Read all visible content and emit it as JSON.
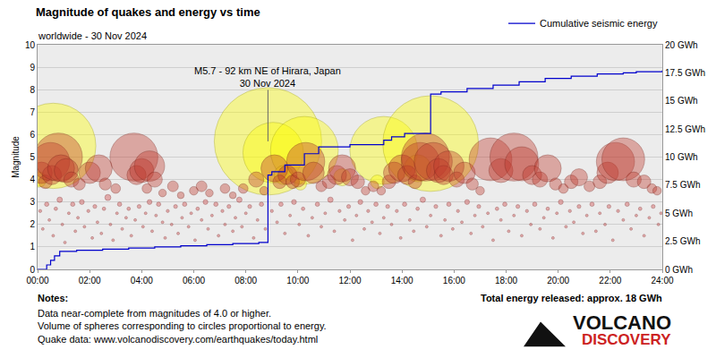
{
  "chart_data": {
    "type": "scatter",
    "title": "Magnitude of quakes and energy vs time",
    "subtitle": "worldwide - 30 Nov 2024",
    "y_label": "Magnitude",
    "xlim": [
      0,
      24
    ],
    "xticks": [
      {
        "value": 0,
        "label": "00:00"
      },
      {
        "value": 2,
        "label": "02:00"
      },
      {
        "value": 4,
        "label": "04:00"
      },
      {
        "value": 6,
        "label": "06:00"
      },
      {
        "value": 8,
        "label": "08:00"
      },
      {
        "value": 10,
        "label": "10:00"
      },
      {
        "value": 12,
        "label": "12:00"
      },
      {
        "value": 14,
        "label": "14:00"
      },
      {
        "value": 16,
        "label": "16:00"
      },
      {
        "value": 18,
        "label": "18:00"
      },
      {
        "value": 20,
        "label": "20:00"
      },
      {
        "value": 22,
        "label": "22:00"
      },
      {
        "value": 24,
        "label": "24:00"
      }
    ],
    "ylim": [
      0,
      10
    ],
    "yticks": [
      0,
      1,
      2,
      3,
      4,
      5,
      6,
      7,
      8,
      9,
      10
    ],
    "y2lim": [
      0,
      20
    ],
    "y2ticks": [
      {
        "value": 0,
        "label": "0 GWh"
      },
      {
        "value": 2.5,
        "label": "2.5 GWh"
      },
      {
        "value": 5,
        "label": "5 GWh"
      },
      {
        "value": 7.5,
        "label": "7.5 GWh"
      },
      {
        "value": 10,
        "label": "10 GWh"
      },
      {
        "value": 12.5,
        "label": "12.5 GWh"
      },
      {
        "value": 15,
        "label": "15 GWh"
      },
      {
        "value": 17.5,
        "label": "17.5 GWh"
      },
      {
        "value": 20,
        "label": "20 GWh"
      }
    ],
    "grid": "y",
    "legend": "top right",
    "series": [
      {
        "color": "#ffff00",
        "marker": "circle",
        "x": [
          0.6,
          8.85,
          9.05,
          10.25,
          13.3,
          15.1,
          9.45,
          10.1,
          11.7,
          13.05,
          14.6,
          0.05
        ],
        "values": [
          5.5,
          5.7,
          5.2,
          5.3,
          5.3,
          5.6,
          4.2,
          3.8,
          4.1,
          3.9,
          4.5,
          4.0
        ]
      },
      {
        "color": "#c0392b",
        "marker": "circle",
        "x": [
          0.15,
          0.3,
          0.5,
          0.55,
          0.8,
          0.9,
          1.1,
          1.3,
          1.6,
          2.0,
          2.35,
          2.6,
          3.0,
          3.7,
          3.8,
          4.0,
          4.2,
          4.3,
          4.5,
          4.8,
          5.2,
          5.5,
          6.0,
          6.3,
          6.6,
          7.2,
          7.5,
          7.9,
          8.4,
          8.7,
          9.1,
          9.3,
          9.6,
          9.8,
          10.0,
          10.3,
          10.6,
          10.9,
          11.2,
          11.5,
          11.7,
          12.0,
          12.3,
          12.6,
          12.9,
          13.2,
          13.5,
          13.7,
          14.0,
          14.2,
          14.5,
          14.7,
          14.9,
          15.2,
          15.4,
          15.6,
          15.8,
          16.1,
          16.4,
          16.7,
          17.0,
          17.4,
          17.8,
          18.3,
          18.6,
          19.0,
          19.3,
          19.6,
          19.9,
          20.2,
          20.5,
          20.8,
          21.2,
          21.6,
          21.9,
          22.2,
          22.5,
          22.9,
          23.3,
          23.6,
          23.8
        ],
        "values": [
          4.3,
          3.9,
          4.8,
          4.2,
          5.0,
          4.5,
          4.4,
          4.0,
          3.8,
          4.3,
          4.5,
          3.8,
          3.6,
          5.0,
          4.2,
          4.4,
          3.6,
          4.6,
          4.0,
          3.4,
          3.7,
          3.3,
          3.5,
          3.7,
          3.4,
          3.6,
          3.3,
          3.6,
          4.0,
          3.5,
          4.5,
          3.9,
          4.2,
          3.9,
          4.0,
          4.8,
          4.3,
          3.7,
          3.9,
          4.2,
          4.5,
          4.1,
          3.9,
          3.5,
          3.7,
          3.5,
          3.9,
          4.3,
          4.5,
          4.2,
          3.9,
          4.8,
          5.0,
          4.8,
          4.4,
          4.2,
          4.6,
          4.0,
          4.3,
          3.8,
          3.5,
          4.9,
          4.4,
          5.0,
          4.7,
          4.2,
          4.0,
          4.5,
          3.8,
          3.6,
          3.9,
          4.1,
          3.7,
          3.9,
          4.3,
          4.8,
          4.9,
          4.0,
          3.9,
          3.6,
          3.5
        ]
      },
      {
        "color": "#d04040",
        "marker": "circle",
        "x": [
          0.1,
          0.2,
          0.35,
          0.45,
          0.6,
          0.7,
          0.85,
          0.95,
          1.05,
          1.2,
          1.35,
          1.45,
          1.55,
          1.7,
          1.8,
          1.95,
          2.1,
          2.2,
          2.3,
          2.45,
          2.55,
          2.7,
          2.8,
          2.9,
          3.05,
          3.15,
          3.25,
          3.4,
          3.5,
          3.6,
          3.75,
          3.9,
          4.05,
          4.15,
          4.3,
          4.4,
          4.55,
          4.65,
          4.8,
          4.9,
          5.0,
          5.15,
          5.3,
          5.4,
          5.55,
          5.65,
          5.8,
          5.9,
          6.05,
          6.15,
          6.3,
          6.45,
          6.55,
          6.7,
          6.85,
          6.95,
          7.1,
          7.2,
          7.35,
          7.5,
          7.6,
          7.75,
          7.85,
          8.0,
          8.15,
          8.3,
          8.45,
          8.6,
          8.75,
          9.0,
          9.2,
          9.35,
          9.5,
          9.7,
          9.85,
          10.05,
          10.2,
          10.4,
          10.55,
          10.75,
          10.9,
          11.05,
          11.25,
          11.4,
          11.6,
          11.8,
          11.95,
          12.1,
          12.25,
          12.4,
          12.55,
          12.7,
          12.85,
          13.0,
          13.15,
          13.3,
          13.45,
          13.6,
          13.8,
          13.95,
          14.1,
          14.3,
          14.45,
          14.6,
          14.8,
          14.95,
          15.1,
          15.3,
          15.5,
          15.65,
          15.8,
          15.95,
          16.15,
          16.3,
          16.5,
          16.65,
          16.8,
          16.95,
          17.1,
          17.3,
          17.5,
          17.65,
          17.8,
          17.95,
          18.1,
          18.3,
          18.45,
          18.6,
          18.8,
          18.95,
          19.1,
          19.3,
          19.45,
          19.6,
          19.8,
          19.95,
          20.1,
          20.3,
          20.45,
          20.6,
          20.8,
          20.95,
          21.1,
          21.3,
          21.45,
          21.6,
          21.8,
          21.95,
          22.1,
          22.3,
          22.5,
          22.65,
          22.8,
          23.0,
          23.15,
          23.3,
          23.5,
          23.65,
          23.85,
          23.95
        ],
        "values": [
          2.6,
          1.8,
          2.9,
          2.2,
          1.5,
          2.7,
          3.1,
          2.0,
          1.2,
          2.5,
          2.9,
          1.7,
          2.3,
          3.0,
          1.9,
          2.6,
          1.4,
          2.8,
          2.1,
          1.6,
          2.7,
          3.2,
          2.0,
          1.3,
          2.5,
          2.9,
          1.8,
          2.3,
          2.7,
          1.5,
          2.2,
          2.8,
          1.9,
          2.5,
          3.0,
          1.7,
          2.4,
          2.9,
          2.1,
          1.4,
          2.6,
          2.0,
          2.8,
          1.6,
          2.3,
          2.9,
          1.9,
          2.5,
          1.3,
          2.7,
          2.2,
          3.0,
          1.8,
          2.4,
          2.9,
          1.5,
          2.6,
          2.0,
          2.8,
          1.7,
          2.3,
          3.1,
          1.9,
          2.5,
          2.8,
          1.4,
          2.2,
          2.9,
          1.8,
          2.6,
          2.1,
          2.9,
          1.6,
          2.4,
          3.0,
          2.0,
          2.7,
          1.5,
          2.3,
          2.9,
          1.9,
          2.5,
          3.1,
          1.7,
          2.6,
          2.2,
          2.8,
          1.3,
          2.4,
          3.0,
          1.8,
          2.6,
          2.1,
          2.9,
          1.6,
          2.3,
          2.8,
          2.0,
          2.6,
          1.4,
          2.9,
          2.2,
          1.7,
          2.7,
          3.1,
          1.9,
          2.4,
          2.8,
          1.5,
          2.2,
          2.9,
          1.8,
          2.6,
          2.1,
          3.0,
          1.6,
          2.4,
          2.8,
          1.9,
          2.5,
          1.3,
          2.7,
          2.2,
          2.9,
          1.7,
          2.4,
          2.8,
          1.5,
          2.6,
          2.0,
          2.9,
          1.8,
          2.3,
          2.7,
          1.4,
          2.5,
          3.0,
          1.9,
          2.6,
          2.1,
          2.8,
          1.6,
          2.4,
          2.9,
          1.7,
          2.5,
          2.0,
          2.8,
          1.3,
          2.6,
          2.2,
          2.9,
          1.8,
          2.4,
          2.7,
          1.5,
          2.3,
          2.8,
          2.0,
          2.5
        ]
      },
      {
        "name": "Cumulative seismic energy",
        "type": "line",
        "axis": "y2",
        "color": "#0000cc",
        "line_style": "step",
        "x": [
          0,
          0.35,
          0.5,
          0.65,
          0.85,
          1.5,
          2.5,
          3.5,
          4.5,
          5.5,
          6.5,
          7.5,
          8.5,
          8.85,
          9.0,
          9.5,
          10.25,
          10.8,
          12.0,
          13.3,
          13.6,
          14.1,
          15.1,
          15.5,
          16.5,
          17.5,
          18.5,
          19.5,
          20.5,
          21.5,
          22.5,
          23.0,
          24
        ],
        "values": [
          0,
          0.4,
          0.8,
          1.2,
          1.6,
          1.7,
          1.8,
          1.9,
          2.0,
          2.1,
          2.2,
          2.3,
          2.4,
          8.4,
          8.7,
          9.3,
          10.3,
          10.9,
          11.1,
          11.5,
          11.8,
          12.1,
          15.6,
          15.8,
          16.1,
          16.4,
          16.7,
          17.0,
          17.2,
          17.4,
          17.5,
          17.6,
          17.7
        ]
      }
    ],
    "annotations": [
      {
        "text": [
          "M5.7 - 92 km NE of Hirara, Japan",
          "30 Nov 2024"
        ],
        "x": 8.85,
        "y": 5.7
      }
    ],
    "notes": {
      "title": "Notes:",
      "lines": [
        "Data near-complete from magnitudes of 4.0 or higher.",
        "Volume of spheres corresponding to circles proportional to energy.",
        "Quake data: www.volcanodiscovery.com/earthquakes/today.html"
      ]
    },
    "total_energy": "Total energy released: approx. 18 GWh",
    "logo": [
      "VOLCANO",
      "DISCOVERY"
    ]
  }
}
